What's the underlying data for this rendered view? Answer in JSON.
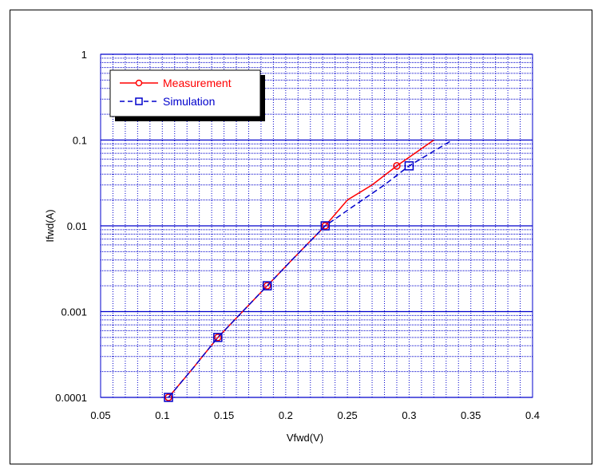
{
  "chart_data": {
    "type": "line",
    "xlabel": "Vfwd(V)",
    "ylabel": "Ifwd(A)",
    "xlim": [
      0.05,
      0.4
    ],
    "ylim": [
      0.0001,
      1
    ],
    "yscale": "log",
    "grid": true,
    "legend_position": "top-left",
    "x_tick_labels": [
      "0.05",
      "0.1",
      "0.15",
      "0.2",
      "0.25",
      "0.3",
      "0.35",
      "0.4"
    ],
    "y_tick_labels": [
      "0.0001",
      "0.001",
      "0.01",
      "0.1",
      "1"
    ],
    "series": [
      {
        "name": "Measurement",
        "color": "#ff0000",
        "marker": "circle",
        "line": "solid",
        "x": [
          0.105,
          0.125,
          0.145,
          0.165,
          0.185,
          0.205,
          0.232,
          0.25,
          0.27,
          0.29,
          0.32
        ],
        "y": [
          0.0001,
          0.00022,
          0.0005,
          0.001,
          0.002,
          0.004,
          0.01,
          0.02,
          0.03,
          0.05,
          0.1
        ],
        "marker_x": [
          0.105,
          0.145,
          0.185,
          0.232,
          0.29
        ],
        "marker_y": [
          0.0001,
          0.0005,
          0.002,
          0.01,
          0.05
        ]
      },
      {
        "name": "Simulation",
        "color": "#0000cc",
        "marker": "square",
        "line": "dashed",
        "x": [
          0.105,
          0.125,
          0.145,
          0.165,
          0.185,
          0.205,
          0.232,
          0.255,
          0.28,
          0.3,
          0.335
        ],
        "y": [
          0.0001,
          0.00022,
          0.0005,
          0.001,
          0.002,
          0.004,
          0.01,
          0.017,
          0.03,
          0.05,
          0.1
        ],
        "marker_x": [
          0.105,
          0.145,
          0.185,
          0.232,
          0.3
        ],
        "marker_y": [
          0.0001,
          0.0005,
          0.002,
          0.01,
          0.05
        ]
      }
    ]
  }
}
